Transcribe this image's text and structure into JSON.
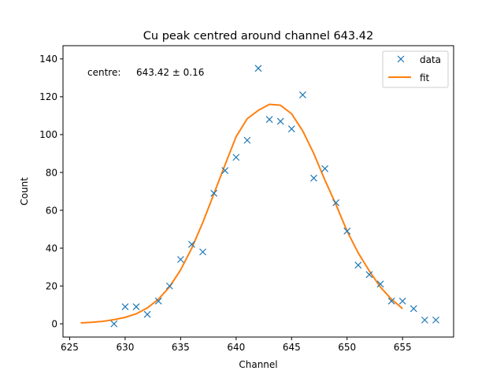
{
  "chart_data": {
    "type": "scatter",
    "title": "Cu peak centred around channel 643.42",
    "xlabel": "Channel",
    "ylabel": "Count",
    "xlim": [
      624.4,
      659.6
    ],
    "ylim": [
      -7,
      147
    ],
    "xticks": [
      625,
      630,
      635,
      640,
      645,
      650,
      655
    ],
    "yticks": [
      0,
      20,
      40,
      60,
      80,
      100,
      120,
      140
    ],
    "grid": false,
    "legend_position": "top-right",
    "annotation": {
      "label": "centre:",
      "value": "643.42 ± 0.16"
    },
    "series": [
      {
        "name": "data",
        "kind": "scatter",
        "marker": "x",
        "color": "#1f77b4",
        "x": [
          629,
          630,
          631,
          632,
          633,
          634,
          635,
          636,
          637,
          638,
          639,
          640,
          641,
          642,
          643,
          644,
          645,
          646,
          647,
          648,
          649,
          650,
          651,
          652,
          653,
          654,
          655,
          656,
          657,
          658
        ],
        "y": [
          0,
          9,
          9,
          5,
          12,
          20,
          34,
          42,
          38,
          69,
          81,
          88,
          97,
          135,
          108,
          107,
          103,
          121,
          77,
          82,
          64,
          49,
          31,
          26,
          21,
          12,
          12,
          8,
          2,
          2
        ]
      },
      {
        "name": "fit",
        "kind": "line",
        "color": "#ff7f0e",
        "x": [
          626,
          627,
          628,
          629,
          630,
          631,
          632,
          633,
          634,
          635,
          636,
          637,
          638,
          639,
          640,
          641,
          642,
          643,
          644,
          645,
          646,
          647,
          648,
          649,
          650,
          651,
          652,
          653,
          654,
          655
        ],
        "y": [
          0.5,
          0.8,
          1.3,
          2.2,
          3.4,
          5.3,
          8.4,
          13,
          19.5,
          28.5,
          39.9,
          53.6,
          68.7,
          84,
          98.9,
          108.4,
          112.8,
          116,
          115.5,
          111,
          102,
          90,
          76,
          63,
          49,
          37.5,
          28,
          19.4,
          13,
          8
        ]
      }
    ]
  }
}
